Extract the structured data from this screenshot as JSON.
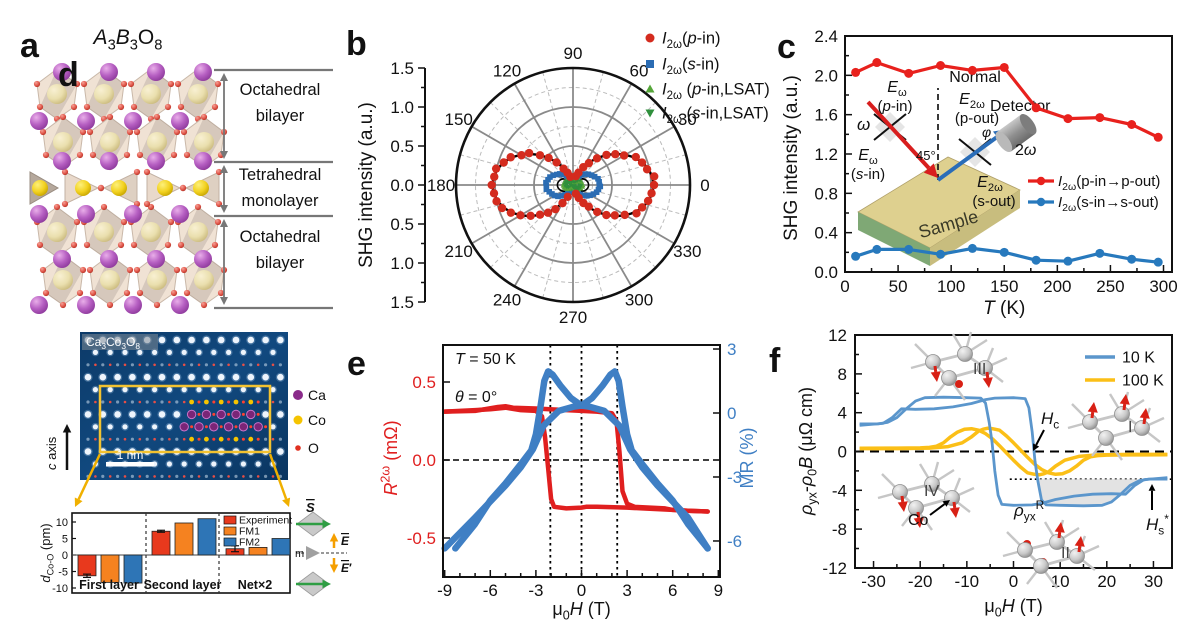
{
  "figure": {
    "background": "#ffffff"
  },
  "panels": {
    "a": {
      "label": "a",
      "title": "~A~_{3}~B~_{3}O_{8}",
      "layers": [
        {
          "line1": "Octahedral",
          "line2": "bilayer"
        },
        {
          "line1": "Tetrahedral",
          "line2": "monolayer"
        },
        {
          "line1": "Octahedral",
          "line2": "bilayer"
        }
      ],
      "atom_colors": {
        "A_site": "#b65fc2",
        "B_site": "#efe3b8",
        "O": "#e2574b",
        "tetra_B": "#f2d11f"
      }
    },
    "b": {
      "label": "b",
      "ylabel": "SHG intensity (a.u.)",
      "radial_tick_labels": [
        "1.5",
        "1.0",
        "0.5",
        "0.0",
        "0.5",
        "1.0",
        "1.5"
      ],
      "angle_labels": [
        "0",
        "30",
        "60",
        "90",
        "120",
        "150",
        "180",
        "210",
        "240",
        "270",
        "300",
        "330"
      ],
      "legend": [
        {
          "marker": "circle",
          "color": "#d42b1e",
          "label": "~I~_{2ω}(~p~-in)"
        },
        {
          "marker": "square",
          "color": "#2b6cb3",
          "label": "~I~_{2ω}(~s~-in)"
        },
        {
          "marker": "triangle-up",
          "color": "#56a63a",
          "label": "~I~_{2ω} (~p~-in,LSAT)"
        },
        {
          "marker": "triangle-down",
          "color": "#2f8f3c",
          "label": "~I~_{2ω} (~s~-in,LSAT)"
        }
      ]
    },
    "c": {
      "label": "c",
      "ylabel": "SHG intensity (a.u.)",
      "xlabel": "~T~ (K)",
      "ytick_labels": [
        "0.0",
        "0.4",
        "0.8",
        "1.2",
        "1.6",
        "2.0",
        "2.4"
      ],
      "xtick_labels": [
        "0",
        "50",
        "100",
        "150",
        "200",
        "250",
        "300"
      ],
      "legend": [
        {
          "color": "#e8211d",
          "label": "~I~_{2ω}(p-in→p-out)"
        },
        {
          "color": "#2779bd",
          "label": "~I~_{2ω}(s-in→s-out)"
        }
      ],
      "inset": {
        "omega": "~ω~",
        "E_p_in_1": "~E~_{ω}",
        "E_p_in_2": "(~p~-in)",
        "normal": "Normal",
        "E_p_out_1": "~E~_{2ω}",
        "E_p_out_2": "(p-out)",
        "detector": "Detector",
        "phi": "~φ~",
        "two_omega": "2~ω~",
        "E_s_out_1": "~E~_{2ω}",
        "E_s_out_2": "(s-out)",
        "E_s_in_1": "~E~_{ω}",
        "E_s_in_2": "(~s~-in)",
        "angle45": "45°",
        "sample": "Sample"
      }
    },
    "d": {
      "label": "d",
      "stem_title": "Ca_{3}Co_{3}O_{8}",
      "c_axis": "~c~ axis",
      "scalebar": "1 nm",
      "atom_legend": [
        {
          "label": "Ca",
          "color": "#8a2b8a"
        },
        {
          "label": "Co",
          "color": "#f5c400"
        },
        {
          "label": "O",
          "color": "#e03020"
        }
      ],
      "bar_ylabel": "~d~_{Co-O} (pm)",
      "bar_yticks": [
        "10",
        "5",
        "0",
        "-5",
        "-10"
      ],
      "bar_groups": [
        "First layer",
        "Second layer",
        "Net×2"
      ],
      "bar_legend": [
        "Experiment",
        "FM1",
        "FM2"
      ],
      "schematic": {
        "S": "&{S}",
        "m": "m",
        "E": "&{E}",
        "Eprime": "&{E}′"
      }
    },
    "e": {
      "label": "e",
      "note1": "~T~ = 50 K",
      "note2": "~θ~ = 0°",
      "ylabel_left": "~R~^{2ω} (mΩ)",
      "ylabel_right": "MR (%)",
      "xlabel": "μ_{0}~H~ (T)",
      "xtick_labels": [
        "-9",
        "-6",
        "-3",
        "0",
        "3",
        "6",
        "9"
      ],
      "ytick_left": [
        "0.5",
        "0.0",
        "-0.5"
      ],
      "ytick_right": [
        "3",
        "0",
        "-3",
        "-6"
      ]
    },
    "f": {
      "label": "f",
      "ylabel": "~ρ~_{yx}-~ρ~_{0}~B~ (μΩ cm)",
      "xlabel": "μ_{0}~H~ (T)",
      "xtick_labels": [
        "-30",
        "-20",
        "-10",
        "0",
        "10",
        "20",
        "30"
      ],
      "ytick_labels": [
        "12",
        "8",
        "4",
        "0",
        "-4",
        "-8",
        "-12"
      ],
      "legend": [
        {
          "label": "10 K",
          "color": "#5b96cc"
        },
        {
          "label": "100 K",
          "color": "#fbbf17"
        }
      ],
      "annotations": {
        "Hc": "~H~_{c}",
        "Hs": "~H~_{s}^{*}",
        "rho": "~ρ~_{yx}^{R}",
        "Co": "Co",
        "clusters": [
          "I",
          "II",
          "III",
          "IV"
        ]
      }
    }
  },
  "chart_data": [
    {
      "id": "b",
      "type": "polar-scatter",
      "ylabel": "SHG intensity (a.u.)",
      "r_max": 1.5,
      "r_grid_solid": [
        0.5,
        1.0,
        1.5
      ],
      "r_grid_dashed": [
        0.25,
        0.75,
        1.25
      ],
      "angle_grid_deg": 30,
      "series": [
        {
          "name": "I2w(p-in)",
          "marker": "circle",
          "color": "#d42b1e",
          "model": "A*cos^2(theta)",
          "amplitude": 1.03
        },
        {
          "name": "I2w(s-in)",
          "marker": "square",
          "color": "#2b6cb3",
          "model": "A*cos^2(theta)+B",
          "amplitude": 0.3,
          "offset": 0.045
        },
        {
          "name": "I2w(p-in,LSAT)",
          "marker": "triangle-up",
          "color": "#56a63a",
          "model": "A*cos^2(theta)",
          "amplitude": 0.1,
          "offset": 0.02
        },
        {
          "name": "I2w(s-in,LSAT)",
          "marker": "triangle-down",
          "color": "#2f8f3c",
          "model": "A*cos^2(theta)",
          "amplitude": 0.08,
          "offset": 0.015
        },
        {
          "name": "fit",
          "marker": "line",
          "color": "#000000",
          "model": "1.03*cos^2(theta)",
          "amplitude": 1.03
        }
      ]
    },
    {
      "id": "c",
      "type": "line",
      "xlabel": "T (K)",
      "ylabel": "SHG intensity (a.u.)",
      "xlim": [
        0,
        308
      ],
      "ylim": [
        0,
        2.4
      ],
      "x": [
        10,
        30,
        60,
        90,
        120,
        150,
        180,
        210,
        240,
        270,
        295
      ],
      "series": [
        {
          "name": "I2w(p-in→p-out)",
          "color": "#e8211d",
          "values": [
            2.03,
            2.13,
            2.02,
            2.1,
            2.05,
            2.08,
            1.67,
            1.56,
            1.57,
            1.5,
            1.37
          ]
        },
        {
          "name": "I2w(s-in→s-out)",
          "color": "#2779bd",
          "values": [
            0.16,
            0.23,
            0.23,
            0.18,
            0.24,
            0.2,
            0.12,
            0.11,
            0.19,
            0.13,
            0.1
          ]
        }
      ]
    },
    {
      "id": "d",
      "type": "bar",
      "ylabel": "d_Co-O (pm)",
      "ylim": [
        -12,
        13
      ],
      "categories": [
        "First layer",
        "Second layer",
        "Net×2"
      ],
      "series": [
        {
          "name": "Experiment",
          "color": "#e8391d",
          "values": [
            -6.3,
            7.2,
            1.9
          ],
          "errors": [
            0.5,
            0.3,
            0.9
          ]
        },
        {
          "name": "FM1",
          "color": "#f58220",
          "values": [
            -8.3,
            9.7,
            2.3
          ]
        },
        {
          "name": "FM2",
          "color": "#2e75b6",
          "values": [
            -8.5,
            11.0,
            5.0
          ]
        }
      ]
    },
    {
      "id": "e",
      "type": "line",
      "xlabel": "μ0H (T)",
      "xlim": [
        -9.6,
        9.6
      ],
      "left_axis": {
        "label": "R2ω (mΩ)",
        "color": "#e01f1f",
        "ticks": [
          0.5,
          0.0,
          -0.5
        ],
        "lim": [
          0.74,
          -0.75
        ]
      },
      "right_axis": {
        "label": "MR (%)",
        "color": "#3f7fc4",
        "ticks": [
          3,
          0,
          -3,
          -6
        ],
        "lim": [
          3.2,
          -7.7
        ]
      },
      "vlines_dotted": [
        -2.05,
        0,
        2.35
      ],
      "hline_dashed_left_value": 0,
      "notes": [
        "T = 50 K",
        "θ = 0°"
      ],
      "series": [
        {
          "name": "R2w up-sweep",
          "axis": "left",
          "color": "#e01f1f",
          "width": 4.5,
          "points": [
            [
              -9,
              0.31
            ],
            [
              -7,
              0.315
            ],
            [
              -5.5,
              0.34
            ],
            [
              -5,
              0.345
            ],
            [
              -4.5,
              0.335
            ],
            [
              -3,
              0.33
            ],
            [
              -1,
              0.32
            ],
            [
              0,
              0.315
            ],
            [
              1,
              0.31
            ],
            [
              2,
              0.3
            ],
            [
              2.3,
              0.25
            ],
            [
              2.5,
              0.05
            ],
            [
              2.7,
              -0.2
            ],
            [
              3,
              -0.28
            ],
            [
              3.5,
              -0.3
            ],
            [
              4.5,
              -0.305
            ],
            [
              5.5,
              -0.31
            ],
            [
              6,
              -0.32
            ],
            [
              7,
              -0.325
            ],
            [
              8.3,
              -0.33
            ]
          ]
        },
        {
          "name": "R2w down-sweep",
          "axis": "left",
          "color": "#e01f1f",
          "width": 4.5,
          "points": [
            [
              8.3,
              -0.33
            ],
            [
              7,
              -0.325
            ],
            [
              6,
              -0.32
            ],
            [
              5,
              -0.315
            ],
            [
              4,
              -0.31
            ],
            [
              3,
              -0.305
            ],
            [
              1,
              -0.3
            ],
            [
              0.3,
              -0.3
            ],
            [
              0,
              -0.305
            ],
            [
              -1,
              -0.31
            ],
            [
              -1.8,
              -0.3
            ],
            [
              -2.0,
              -0.25
            ],
            [
              -2.2,
              -0.05
            ],
            [
              -2.4,
              0.15
            ],
            [
              -2.6,
              0.28
            ],
            [
              -3,
              0.315
            ],
            [
              -4,
              0.32
            ],
            [
              -5,
              0.335
            ],
            [
              -6,
              0.325
            ],
            [
              -7,
              0.32
            ],
            [
              -9,
              0.31
            ]
          ]
        },
        {
          "name": "MR up-sweep",
          "axis": "right",
          "color": "#3f7fc4",
          "width": 6.5,
          "points": [
            [
              -9,
              -6.35
            ],
            [
              -7,
              -4.9
            ],
            [
              -5,
              -3.4
            ],
            [
              -4,
              -2.55
            ],
            [
              -3.2,
              -1.7
            ],
            [
              -2.5,
              -0.6
            ],
            [
              -1.5,
              0.1
            ],
            [
              -0.5,
              0.3
            ],
            [
              0,
              0.35
            ],
            [
              0.7,
              0.7
            ],
            [
              1.4,
              1.3
            ],
            [
              1.9,
              1.8
            ],
            [
              2.2,
              1.95
            ],
            [
              2.45,
              1.5
            ],
            [
              2.7,
              0.3
            ],
            [
              3,
              -1.0
            ],
            [
              3.3,
              -1.75
            ],
            [
              4,
              -2.4
            ],
            [
              5,
              -3.3
            ],
            [
              6,
              -4.1
            ],
            [
              7,
              -5.2
            ],
            [
              8.3,
              -6.35
            ]
          ]
        },
        {
          "name": "MR down-sweep",
          "axis": "right",
          "color": "#3f7fc4",
          "width": 6.5,
          "points": [
            [
              8.3,
              -6.35
            ],
            [
              7,
              -4.9
            ],
            [
              5,
              -3.4
            ],
            [
              4,
              -2.55
            ],
            [
              3.2,
              -1.7
            ],
            [
              2.5,
              -0.6
            ],
            [
              1.5,
              0.1
            ],
            [
              0.5,
              0.3
            ],
            [
              0,
              0.35
            ],
            [
              -0.7,
              0.7
            ],
            [
              -1.4,
              1.3
            ],
            [
              -1.9,
              1.8
            ],
            [
              -2.2,
              1.95
            ],
            [
              -2.45,
              1.5
            ],
            [
              -2.7,
              0.3
            ],
            [
              -3,
              -1.0
            ],
            [
              -3.3,
              -1.75
            ],
            [
              -4,
              -2.4
            ],
            [
              -5,
              -3.3
            ],
            [
              -6,
              -4.1
            ],
            [
              -7,
              -5.2
            ],
            [
              -8.3,
              -6.35
            ]
          ]
        }
      ]
    },
    {
      "id": "f",
      "type": "line",
      "xlabel": "μ0H (T)",
      "ylabel": "ρyx-ρ0B (μΩ cm)",
      "xlim": [
        -34,
        34
      ],
      "ylim": [
        -12,
        12
      ],
      "hline_dashed": 0,
      "hline_dotted": -2.85,
      "series": [
        {
          "name": "10 K up-sweep",
          "color": "#5b96cc",
          "width": 2.8,
          "points": [
            [
              -33,
              2.7
            ],
            [
              -28,
              2.9
            ],
            [
              -26,
              3.5
            ],
            [
              -24,
              4.4
            ],
            [
              -21,
              4.35
            ],
            [
              -17,
              4.4
            ],
            [
              -13,
              4.6
            ],
            [
              -9,
              4.95
            ],
            [
              -6,
              5.35
            ],
            [
              -4,
              5.5
            ],
            [
              0,
              5.55
            ],
            [
              2.5,
              5.45
            ],
            [
              3.3,
              4.5
            ],
            [
              4,
              2
            ],
            [
              4.6,
              -1
            ],
            [
              5.2,
              -3
            ],
            [
              6,
              -5.0
            ],
            [
              7,
              -5.5
            ],
            [
              10,
              -5.55
            ],
            [
              15,
              -5.6
            ],
            [
              19,
              -5.55
            ],
            [
              21,
              -5.2
            ],
            [
              23,
              -4.4
            ],
            [
              25,
              -3.5
            ],
            [
              27,
              -3.0
            ],
            [
              29,
              -2.85
            ],
            [
              33,
              -2.85
            ]
          ],
          "symmetry": "point-mirror"
        },
        {
          "name": "10 K down-sweep",
          "color": "#5b96cc",
          "width": 2.8,
          "mirror_of": "10 K up-sweep"
        },
        {
          "name": "100 K up-sweep",
          "color": "#fbbf17",
          "width": 3.5,
          "points": [
            [
              -33,
              0.3
            ],
            [
              -25,
              0.3
            ],
            [
              -18,
              0.35
            ],
            [
              -14,
              0.5
            ],
            [
              -11,
              0.9
            ],
            [
              -9,
              1.5
            ],
            [
              -7.5,
              2.1
            ],
            [
              -6.5,
              2.3
            ],
            [
              -5.5,
              2.4
            ],
            [
              -4.5,
              2.35
            ],
            [
              -3,
              2.2
            ],
            [
              -1.5,
              1.6
            ],
            [
              0,
              0.9
            ],
            [
              1.5,
              0.15
            ],
            [
              3,
              -0.6
            ],
            [
              4.5,
              -1.3
            ],
            [
              6,
              -1.85
            ],
            [
              7.5,
              -2.2
            ],
            [
              9,
              -2.35
            ],
            [
              10.5,
              -2.3
            ],
            [
              12,
              -2.0
            ],
            [
              13.5,
              -1.5
            ],
            [
              15,
              -0.9
            ],
            [
              16.5,
              -0.55
            ],
            [
              18,
              -0.42
            ],
            [
              20,
              -0.37
            ],
            [
              25,
              -0.35
            ],
            [
              33,
              -0.33
            ]
          ],
          "symmetry": "point-mirror"
        },
        {
          "name": "100 K down-sweep",
          "color": "#fbbf17",
          "width": 3.5,
          "mirror_of": "100 K up-sweep"
        }
      ],
      "legend_pos": "top-right"
    }
  ]
}
